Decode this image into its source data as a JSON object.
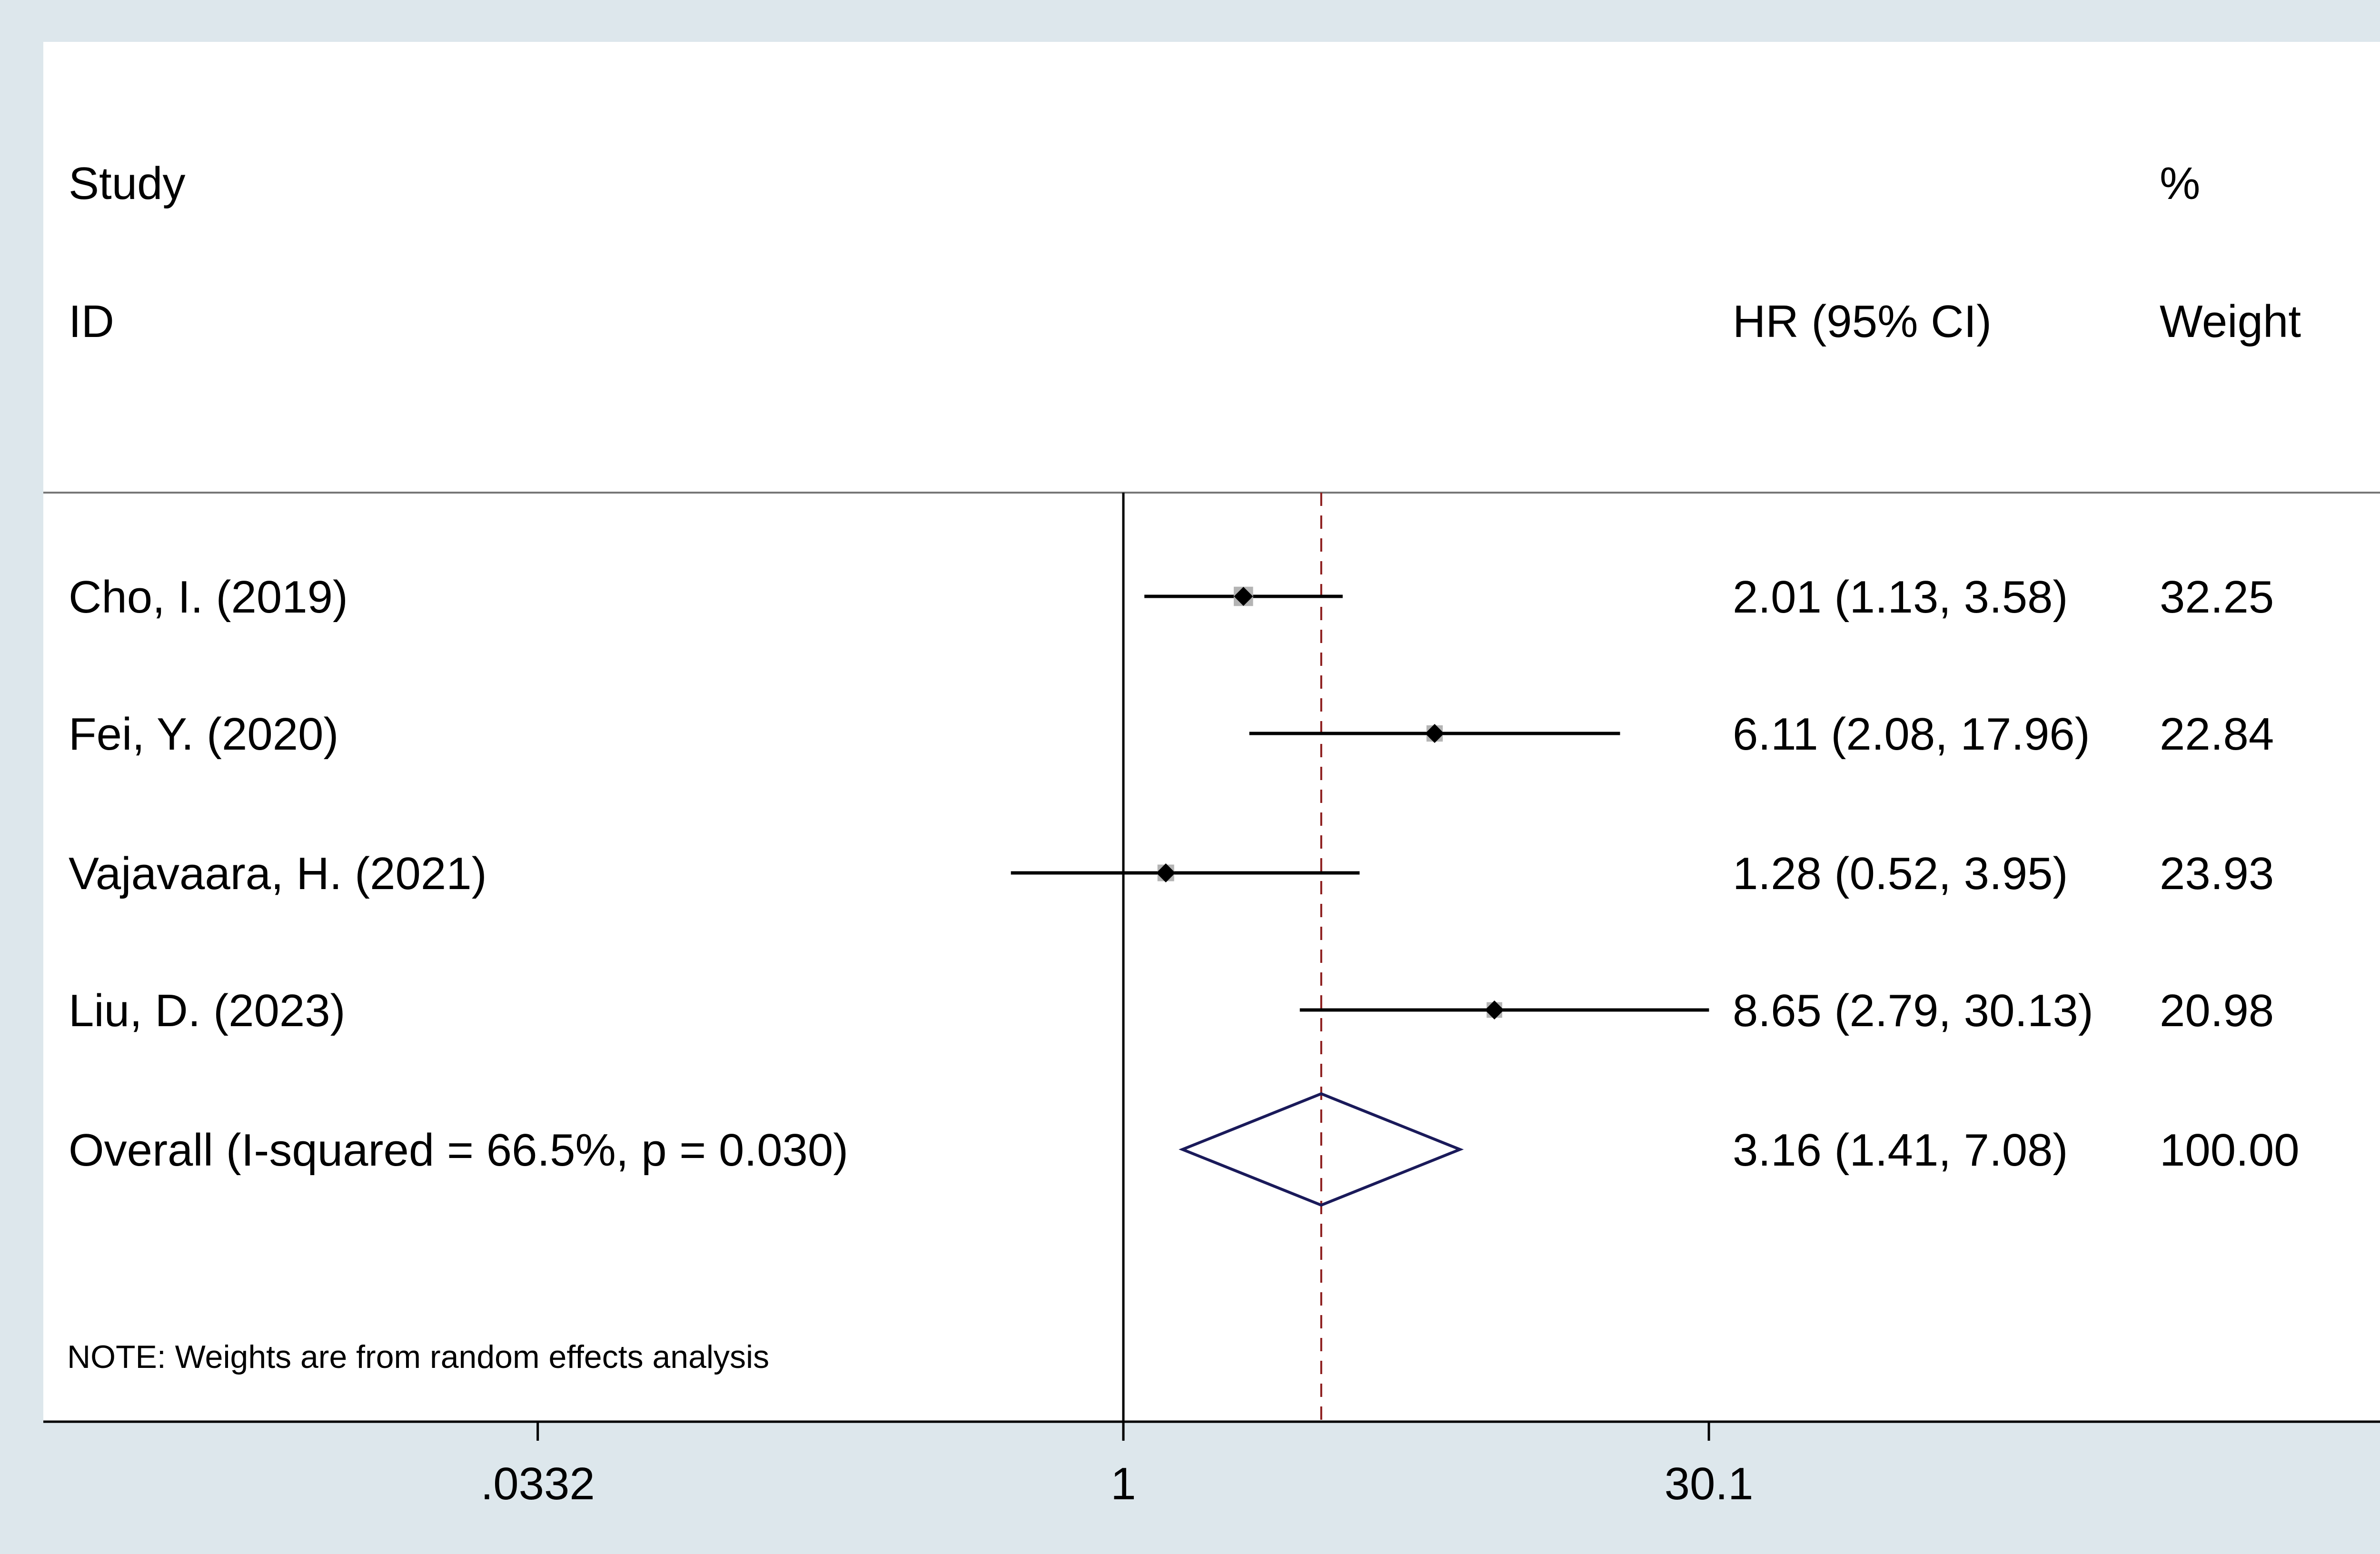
{
  "chart_data": {
    "type": "forest",
    "header": {
      "study_line1": "Study",
      "study_line2": "ID",
      "hr_label": "HR (95% CI)",
      "weight_line1": "%",
      "weight_line2": "Weight"
    },
    "studies": [
      {
        "label": "Cho, I. (2019)",
        "hr": 2.01,
        "lo": 1.13,
        "hi": 3.58,
        "hr_text": "2.01 (1.13, 3.58)",
        "weight": 32.25,
        "weight_text": "32.25"
      },
      {
        "label": "Fei, Y. (2020)",
        "hr": 6.11,
        "lo": 2.08,
        "hi": 17.96,
        "hr_text": "6.11 (2.08, 17.96)",
        "weight": 22.84,
        "weight_text": "22.84"
      },
      {
        "label": "Vajavaara, H. (2021)",
        "hr": 1.28,
        "lo": 0.52,
        "hi": 3.95,
        "hr_text": "1.28 (0.52, 3.95)",
        "weight": 23.93,
        "weight_text": "23.93"
      },
      {
        "label": "Liu, D. (2023)",
        "hr": 8.65,
        "lo": 2.79,
        "hi": 30.13,
        "hr_text": "8.65 (2.79, 30.13)",
        "weight": 20.98,
        "weight_text": "20.98"
      }
    ],
    "overall": {
      "label": "Overall  (I-squared = 66.5%, p = 0.030)",
      "hr": 3.16,
      "lo": 1.41,
      "hi": 7.08,
      "hr_text": "3.16 (1.41, 7.08)",
      "weight_text": "100.00"
    },
    "note": "NOTE: Weights are from random effects analysis",
    "x_axis": {
      "scale": "log",
      "ticks": [
        {
          "value": 0.0332,
          "label": ".0332"
        },
        {
          "value": 1,
          "label": "1"
        },
        {
          "value": 30.1,
          "label": "30.1"
        }
      ],
      "null_line": 1
    },
    "colors": {
      "background": "#dde7ec",
      "panel": "#ffffff",
      "ci_line": "#000000",
      "weight_box": "#b4b4b4",
      "point": "#000000",
      "overall_diamond": "#1a1a5a",
      "overall_line": "#8b1a1a"
    }
  }
}
